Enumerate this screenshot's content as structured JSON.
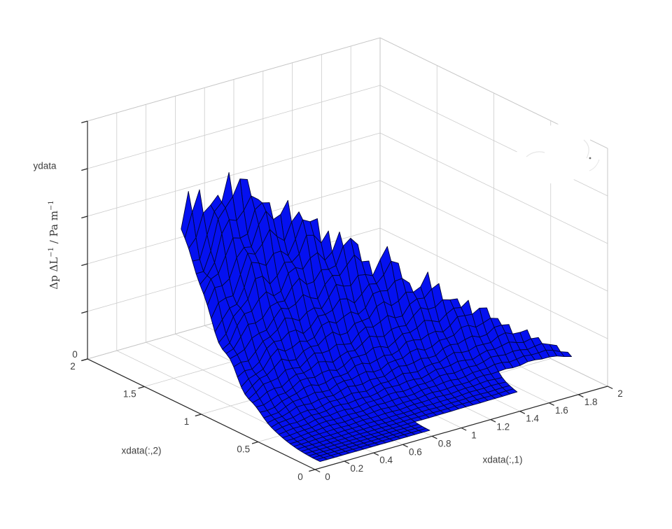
{
  "figure": {
    "background": "#ffffff",
    "extra_label": "ydata"
  },
  "colors": {
    "grid": "#cccccc",
    "box_edge": "#c6c6c6",
    "axis": "#262626",
    "tick_label": "#3e3e3e",
    "axis_label": "#3e3e3e",
    "smudge_dot": "#6b6b6b",
    "smudge_wisp": "#e6e6e6"
  },
  "chart_data": {
    "type": "surface",
    "title": "",
    "xlabel": "xdata(:,1)",
    "ylabel": "xdata(:,2)",
    "zlabel": {
      "part1": "Δp ΔL",
      "sup1": "−1",
      "part2": " / Pa m",
      "sup2": "−1",
      "plain": "Δp ΔL^-1 / Pa m^-1"
    },
    "extra_label": "ydata",
    "x_range": [
      0,
      2
    ],
    "y_range": [
      0,
      2
    ],
    "x_ticks": [
      0,
      0.2,
      0.4,
      0.6,
      0.8,
      1,
      1.2,
      1.4,
      1.6,
      1.8,
      2
    ],
    "x_tick_labels": [
      "0",
      "0.2",
      "0.4",
      "0.6",
      "0.8",
      "1",
      "1.2",
      "1.4",
      "1.6",
      "1.8",
      "2"
    ],
    "y_ticks": [
      0,
      0.5,
      1,
      1.5,
      2
    ],
    "y_tick_labels": [
      "0",
      "0.5",
      "1",
      "1.5",
      "2"
    ],
    "z_tick_count": 6,
    "z_tick_labels_visible": [
      "0"
    ],
    "grid": true,
    "legend": null,
    "surface": {
      "face_color": "#0511f0",
      "edge_color": "#000538",
      "x1_start": 0.05,
      "x1_step": 0.05,
      "x1_count": 40,
      "x2_start": 0.02,
      "x2_step": 0.033,
      "x2_count": 40,
      "domain": {
        "x2max_at_x1_0": 1.3,
        "x2max_slope": -0.47,
        "x2min_steps": [
          {
            "from_x1": 0.0,
            "x2min": 0.0
          },
          {
            "from_x1": 0.85,
            "x2min": 0.15
          },
          {
            "from_x1": 1.55,
            "x2min": 0.3
          }
        ]
      },
      "height_model": {
        "base": 0.02,
        "peak_x1": 0.3,
        "peak_amplitude": 0.93,
        "rise_slope": 0.6,
        "fall_slope": 0.52,
        "exponent": 2.7,
        "noise": [
          {
            "amp": 0.05,
            "fx1": 37,
            "fx2": 23
          },
          {
            "amp": 0.04,
            "fx1": 17,
            "fx2": -31
          }
        ]
      }
    }
  }
}
